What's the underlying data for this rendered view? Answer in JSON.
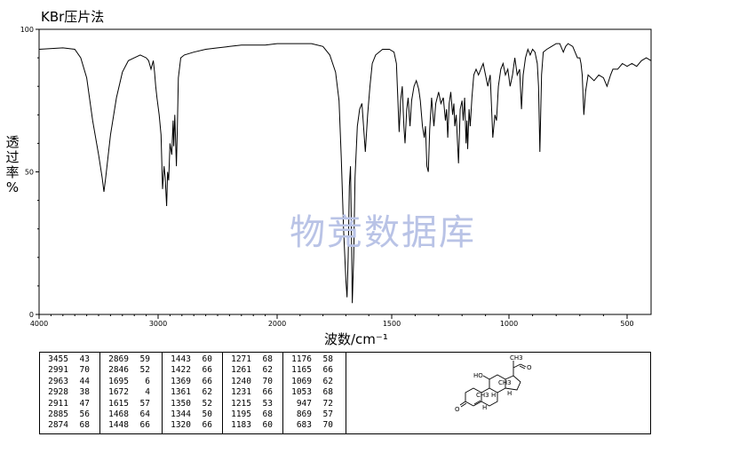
{
  "title": "KBr压片法",
  "ylabel_lines": [
    "透",
    "过",
    "率",
    "%"
  ],
  "xlabel": "波数/cm⁻¹",
  "watermark": "物竞数据库",
  "chart_data": {
    "type": "line",
    "x_axis": {
      "label": "波数/cm⁻¹",
      "range": [
        4000,
        400
      ],
      "ticks": [
        4000,
        3000,
        2000,
        1500,
        1000,
        500
      ]
    },
    "y_axis": {
      "label": "透过率 %",
      "range": [
        0,
        100
      ],
      "ticks": [
        0,
        50,
        100
      ]
    },
    "series": [
      {
        "points": [
          [
            4000,
            93
          ],
          [
            3800,
            93.5
          ],
          [
            3700,
            93
          ],
          [
            3650,
            90
          ],
          [
            3600,
            83
          ],
          [
            3550,
            68
          ],
          [
            3500,
            56
          ],
          [
            3470,
            48
          ],
          [
            3455,
            43
          ],
          [
            3440,
            48
          ],
          [
            3400,
            63
          ],
          [
            3350,
            76
          ],
          [
            3300,
            85
          ],
          [
            3250,
            89
          ],
          [
            3200,
            90
          ],
          [
            3150,
            91
          ],
          [
            3100,
            90
          ],
          [
            3080,
            89
          ],
          [
            3060,
            86
          ],
          [
            3040,
            89
          ],
          [
            3030,
            85
          ],
          [
            3020,
            80
          ],
          [
            3010,
            76
          ],
          [
            2991,
            70
          ],
          [
            2975,
            63
          ],
          [
            2963,
            44
          ],
          [
            2950,
            52
          ],
          [
            2940,
            48
          ],
          [
            2928,
            38
          ],
          [
            2920,
            50
          ],
          [
            2911,
            47
          ],
          [
            2900,
            60
          ],
          [
            2885,
            56
          ],
          [
            2880,
            62
          ],
          [
            2874,
            68
          ],
          [
            2869,
            59
          ],
          [
            2860,
            70
          ],
          [
            2846,
            52
          ],
          [
            2838,
            66
          ],
          [
            2830,
            83
          ],
          [
            2810,
            90
          ],
          [
            2780,
            91
          ],
          [
            2700,
            92
          ],
          [
            2600,
            93
          ],
          [
            2500,
            93.5
          ],
          [
            2400,
            94
          ],
          [
            2300,
            94.5
          ],
          [
            2200,
            94.5
          ],
          [
            2100,
            94.5
          ],
          [
            2000,
            95
          ],
          [
            1900,
            95
          ],
          [
            1850,
            95
          ],
          [
            1800,
            94
          ],
          [
            1770,
            91
          ],
          [
            1745,
            85
          ],
          [
            1730,
            75
          ],
          [
            1720,
            55
          ],
          [
            1710,
            30
          ],
          [
            1700,
            12
          ],
          [
            1695,
            6
          ],
          [
            1690,
            20
          ],
          [
            1685,
            45
          ],
          [
            1680,
            52
          ],
          [
            1676,
            30
          ],
          [
            1672,
            4
          ],
          [
            1666,
            20
          ],
          [
            1660,
            48
          ],
          [
            1650,
            66
          ],
          [
            1640,
            72
          ],
          [
            1630,
            74
          ],
          [
            1615,
            57
          ],
          [
            1605,
            70
          ],
          [
            1595,
            80
          ],
          [
            1585,
            88
          ],
          [
            1570,
            91
          ],
          [
            1540,
            93
          ],
          [
            1510,
            93
          ],
          [
            1490,
            92
          ],
          [
            1480,
            88
          ],
          [
            1468,
            64
          ],
          [
            1462,
            75
          ],
          [
            1455,
            80
          ],
          [
            1448,
            66
          ],
          [
            1443,
            60
          ],
          [
            1436,
            72
          ],
          [
            1430,
            76
          ],
          [
            1422,
            66
          ],
          [
            1415,
            75
          ],
          [
            1405,
            80
          ],
          [
            1395,
            82
          ],
          [
            1385,
            79
          ],
          [
            1378,
            75
          ],
          [
            1369,
            66
          ],
          [
            1361,
            62
          ],
          [
            1356,
            66
          ],
          [
            1350,
            52
          ],
          [
            1344,
            50
          ],
          [
            1338,
            65
          ],
          [
            1330,
            76
          ],
          [
            1320,
            66
          ],
          [
            1312,
            74
          ],
          [
            1300,
            78
          ],
          [
            1290,
            74
          ],
          [
            1280,
            76
          ],
          [
            1271,
            68
          ],
          [
            1266,
            72
          ],
          [
            1261,
            62
          ],
          [
            1255,
            74
          ],
          [
            1248,
            78
          ],
          [
            1240,
            70
          ],
          [
            1235,
            74
          ],
          [
            1231,
            66
          ],
          [
            1225,
            70
          ],
          [
            1215,
            53
          ],
          [
            1208,
            72
          ],
          [
            1200,
            75
          ],
          [
            1195,
            68
          ],
          [
            1189,
            76
          ],
          [
            1183,
            60
          ],
          [
            1179,
            68
          ],
          [
            1176,
            58
          ],
          [
            1170,
            72
          ],
          [
            1165,
            66
          ],
          [
            1158,
            76
          ],
          [
            1150,
            84
          ],
          [
            1140,
            86
          ],
          [
            1130,
            84
          ],
          [
            1120,
            86
          ],
          [
            1110,
            88
          ],
          [
            1100,
            84
          ],
          [
            1090,
            80
          ],
          [
            1080,
            84
          ],
          [
            1069,
            62
          ],
          [
            1060,
            70
          ],
          [
            1053,
            68
          ],
          [
            1045,
            80
          ],
          [
            1035,
            86
          ],
          [
            1025,
            88
          ],
          [
            1015,
            84
          ],
          [
            1005,
            86
          ],
          [
            995,
            80
          ],
          [
            985,
            84
          ],
          [
            975,
            90
          ],
          [
            965,
            84
          ],
          [
            955,
            86
          ],
          [
            947,
            72
          ],
          [
            940,
            84
          ],
          [
            930,
            90
          ],
          [
            920,
            93
          ],
          [
            910,
            91
          ],
          [
            900,
            93
          ],
          [
            890,
            92
          ],
          [
            880,
            88
          ],
          [
            875,
            80
          ],
          [
            869,
            57
          ],
          [
            862,
            84
          ],
          [
            855,
            92
          ],
          [
            840,
            93
          ],
          [
            820,
            94
          ],
          [
            800,
            95
          ],
          [
            785,
            95
          ],
          [
            770,
            92
          ],
          [
            760,
            94
          ],
          [
            750,
            95
          ],
          [
            730,
            94
          ],
          [
            710,
            90
          ],
          [
            700,
            90
          ],
          [
            695,
            88
          ],
          [
            690,
            84
          ],
          [
            683,
            70
          ],
          [
            676,
            78
          ],
          [
            665,
            84
          ],
          [
            640,
            82
          ],
          [
            620,
            84
          ],
          [
            600,
            83
          ],
          [
            585,
            80
          ],
          [
            570,
            84
          ],
          [
            560,
            86
          ],
          [
            540,
            86
          ],
          [
            520,
            88
          ],
          [
            500,
            87
          ],
          [
            480,
            88
          ],
          [
            460,
            87
          ],
          [
            440,
            89
          ],
          [
            420,
            90
          ],
          [
            400,
            89
          ]
        ]
      }
    ]
  },
  "peak_table": [
    [
      [
        "3455",
        "43"
      ],
      [
        "2991",
        "70"
      ],
      [
        "2963",
        "44"
      ],
      [
        "2928",
        "38"
      ],
      [
        "2911",
        "47"
      ],
      [
        "2885",
        "56"
      ],
      [
        "2874",
        "68"
      ]
    ],
    [
      [
        "2869",
        "59"
      ],
      [
        "2846",
        "52"
      ],
      [
        "1695",
        "6"
      ],
      [
        "1672",
        "4"
      ],
      [
        "1615",
        "57"
      ],
      [
        "1468",
        "64"
      ],
      [
        "1448",
        "66"
      ]
    ],
    [
      [
        "1443",
        "60"
      ],
      [
        "1422",
        "66"
      ],
      [
        "1369",
        "66"
      ],
      [
        "1361",
        "62"
      ],
      [
        "1350",
        "52"
      ],
      [
        "1344",
        "50"
      ],
      [
        "1320",
        "66"
      ]
    ],
    [
      [
        "1271",
        "68"
      ],
      [
        "1261",
        "62"
      ],
      [
        "1240",
        "70"
      ],
      [
        "1231",
        "66"
      ],
      [
        "1215",
        "53"
      ],
      [
        "1195",
        "68"
      ],
      [
        "1183",
        "60"
      ]
    ],
    [
      [
        "1176",
        "58"
      ],
      [
        "1165",
        "66"
      ],
      [
        "1069",
        "62"
      ],
      [
        "1053",
        "68"
      ],
      [
        "947",
        "72"
      ],
      [
        "869",
        "57"
      ],
      [
        "683",
        "70"
      ]
    ]
  ],
  "structure_labels": {
    "ch3_top": "CH3",
    "oxygen_ketone": "O",
    "hydroxyl": "HO",
    "ch3_c18": "CH3",
    "ch3_c19": "CH3",
    "h1": "H",
    "h2": "H",
    "h3": "H",
    "oxygen_enone": "O"
  },
  "colors": {
    "axis": "#000000",
    "line": "#000000",
    "watermark": "#b9c3e6"
  }
}
